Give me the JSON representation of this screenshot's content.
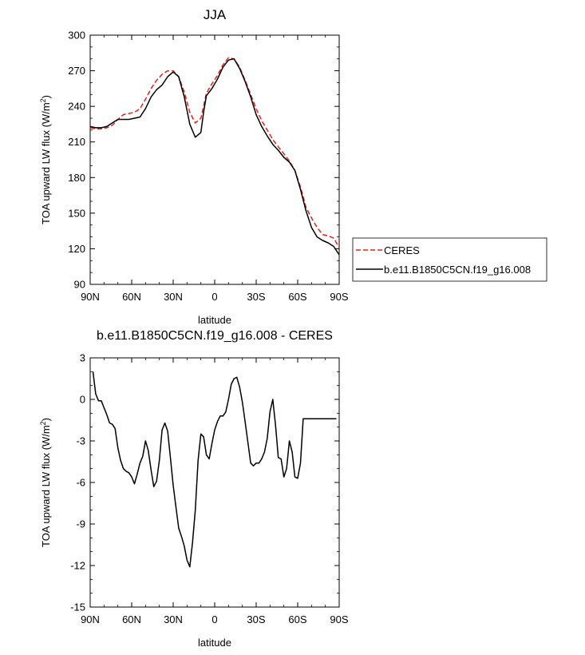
{
  "chart_data": [
    {
      "type": "line",
      "title": "JJA",
      "xlabel": "latitude",
      "ylabel": "TOA upward LW flux (W/m",
      "ylabel_sup": "2",
      "ylabel_close": ")",
      "xlim": [
        90,
        -90
      ],
      "ylim": [
        90,
        300
      ],
      "x_ticks": [
        90,
        60,
        30,
        0,
        -30,
        -60,
        -90
      ],
      "x_tick_labels": [
        "90N",
        "60N",
        "30N",
        "0",
        "30S",
        "60S",
        "90S"
      ],
      "y_ticks": [
        90,
        120,
        150,
        180,
        210,
        240,
        270,
        300
      ],
      "y_tick_labels": [
        "90",
        "120",
        "150",
        "180",
        "210",
        "240",
        "270",
        "300"
      ],
      "legend_placement": "right, outside plot",
      "series": [
        {
          "name": "CERES",
          "color": "#e8201a",
          "dash": "dashed",
          "x": [
            90,
            86,
            82,
            78,
            74,
            70,
            66,
            62,
            58,
            54,
            50,
            46,
            42,
            38,
            34,
            30,
            26,
            22,
            18,
            14,
            10,
            8,
            6,
            2,
            -2,
            -6,
            -10,
            -14,
            -18,
            -22,
            -26,
            -30,
            -34,
            -38,
            -42,
            -46,
            -50,
            -54,
            -58,
            -62,
            -66,
            -70,
            -74,
            -78,
            -82,
            -86,
            -90
          ],
          "y": [
            222,
            221,
            221,
            222,
            224,
            229,
            233,
            234,
            235,
            238,
            246,
            255,
            262,
            267,
            270,
            270,
            265,
            252,
            235,
            226,
            230,
            240,
            251,
            259,
            266,
            275,
            281,
            280,
            273,
            262,
            250,
            238,
            228,
            220,
            212,
            206,
            200,
            194,
            186,
            172,
            155,
            146,
            138,
            132,
            131,
            129,
            121
          ]
        },
        {
          "name": "b.e11.B1850C5CN.f19_g16.008",
          "color": "#000000",
          "dash": "solid",
          "x": [
            90,
            86,
            82,
            78,
            74,
            70,
            66,
            62,
            58,
            54,
            50,
            46,
            42,
            38,
            34,
            30,
            26,
            22,
            18,
            14,
            10,
            8,
            6,
            2,
            -2,
            -6,
            -10,
            -14,
            -18,
            -22,
            -26,
            -30,
            -34,
            -38,
            -42,
            -46,
            -50,
            -54,
            -58,
            -62,
            -66,
            -70,
            -74,
            -78,
            -82,
            -86,
            -90
          ],
          "y": [
            223,
            222,
            222,
            223,
            226,
            229,
            229,
            229,
            230,
            231,
            238,
            248,
            254,
            258,
            265,
            269,
            265,
            248,
            225,
            214,
            218,
            235,
            249,
            255,
            263,
            273,
            279,
            280,
            272,
            261,
            248,
            233,
            223,
            215,
            208,
            203,
            197,
            193,
            186,
            170,
            152,
            138,
            130,
            127,
            125,
            122,
            115
          ]
        }
      ]
    },
    {
      "type": "line",
      "title": "b.e11.B1850C5CN.f19_g16.008 - CERES",
      "xlabel": "latitude",
      "ylabel": "TOA upward LW flux (W/m",
      "ylabel_sup": "2",
      "ylabel_close": ")",
      "xlim": [
        90,
        -90
      ],
      "ylim": [
        -15,
        3
      ],
      "x_ticks": [
        90,
        60,
        30,
        0,
        -30,
        -60,
        -90
      ],
      "x_tick_labels": [
        "90N",
        "60N",
        "30N",
        "0",
        "30S",
        "60S",
        "90S"
      ],
      "y_ticks": [
        -15,
        -12,
        -9,
        -6,
        -3,
        0,
        3
      ],
      "y_tick_labels": [
        "-15",
        "-12",
        "-9",
        "-6",
        "-3",
        "0",
        "3"
      ],
      "series": [
        {
          "color": "#000000",
          "dash": "solid",
          "x": [
            88,
            86,
            84,
            82,
            80,
            78,
            76,
            74,
            72,
            70,
            68,
            66,
            64,
            62,
            60,
            58,
            56,
            54,
            52,
            50,
            48,
            46,
            44,
            42,
            40,
            38,
            36,
            34,
            32,
            30,
            28,
            26,
            24,
            22,
            20,
            18,
            16,
            14,
            12,
            10,
            8,
            6,
            4,
            2,
            0,
            -2,
            -4,
            -6,
            -8,
            -10,
            -12,
            -14,
            -16,
            -18,
            -20,
            -22,
            -24,
            -26,
            -28,
            -30,
            -32,
            -34,
            -36,
            -38,
            -40,
            -42,
            -44,
            -46,
            -48,
            -50,
            -52,
            -54,
            -56,
            -58,
            -60,
            -62,
            -64,
            -66,
            -68,
            -70,
            -72,
            -74,
            -76,
            -78,
            -80,
            -82,
            -84,
            -86,
            -88
          ],
          "y": [
            2.0,
            0.4,
            -0.1,
            -0.1,
            -0.6,
            -1.1,
            -1.7,
            -1.8,
            -2.1,
            -3.5,
            -4.4,
            -5.0,
            -5.2,
            -5.3,
            -5.6,
            -6.1,
            -5.4,
            -4.6,
            -4.1,
            -3.0,
            -3.7,
            -5.1,
            -6.3,
            -5.9,
            -4.4,
            -2.2,
            -1.7,
            -2.3,
            -4.2,
            -6.2,
            -7.8,
            -9.3,
            -9.9,
            -10.6,
            -11.6,
            -12.1,
            -10.3,
            -8.0,
            -4.4,
            -2.5,
            -2.7,
            -4.0,
            -4.3,
            -3.2,
            -2.2,
            -1.6,
            -1.2,
            -1.2,
            -0.9,
            0.0,
            1.1,
            1.5,
            1.6,
            0.9,
            -0.2,
            -1.6,
            -3.1,
            -4.6,
            -4.8,
            -4.6,
            -4.6,
            -4.3,
            -3.8,
            -2.8,
            -0.9,
            0.0,
            -1.9,
            -4.2,
            -4.3,
            -5.6,
            -5.0,
            -3.0,
            -3.8,
            -5.6,
            -5.7,
            -4.6,
            -1.4,
            -1.4,
            -1.4,
            -1.4,
            -1.4,
            -1.4,
            -1.4,
            -1.4,
            -1.4,
            -1.4,
            -1.4,
            -1.4,
            -1.4
          ]
        }
      ]
    }
  ]
}
